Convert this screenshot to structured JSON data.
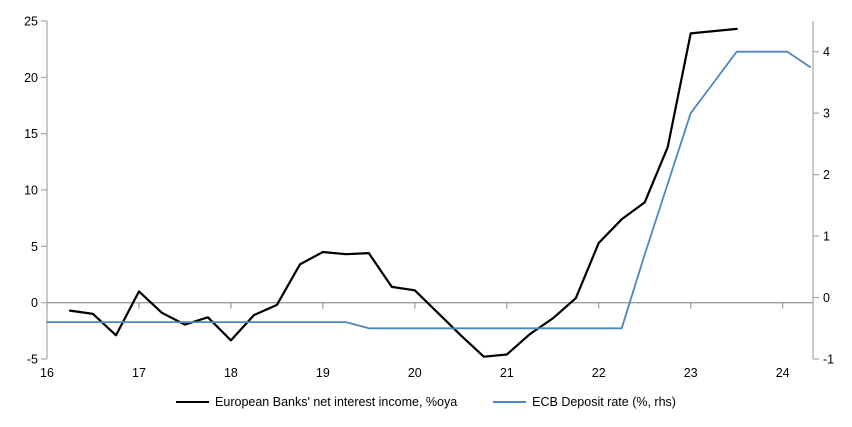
{
  "chart_data": {
    "type": "line",
    "title": "",
    "legend_position": "bottom",
    "grid": false,
    "x_axis": {
      "min": 16,
      "max": 24.33,
      "ticks": [
        16,
        17,
        18,
        19,
        20,
        21,
        22,
        23,
        24
      ],
      "tick_labels": [
        "16",
        "17",
        "18",
        "19",
        "20",
        "21",
        "22",
        "23",
        "24"
      ],
      "axis_at_value": 0
    },
    "left_axis": {
      "min": -5,
      "max": 25,
      "ticks": [
        25,
        20,
        15,
        10,
        5,
        0,
        -5
      ],
      "tick_labels": [
        "25",
        "20",
        "15",
        "10",
        "5",
        "0",
        "-5"
      ]
    },
    "right_axis": {
      "min": -1,
      "max": 4.5,
      "ticks": [
        4,
        3,
        2,
        1,
        0,
        -1
      ],
      "tick_labels": [
        "4",
        "3",
        "2",
        "1",
        "0",
        "-1"
      ]
    },
    "series": [
      {
        "name": "European Banks' net interest income, %oya",
        "axis": "left",
        "color": "#000000",
        "line_width": 2.2,
        "points": [
          [
            16.25,
            -0.7
          ],
          [
            16.5,
            -1.0
          ],
          [
            16.75,
            -2.9
          ],
          [
            17.0,
            1.0
          ],
          [
            17.25,
            -0.9
          ],
          [
            17.5,
            -1.95
          ],
          [
            17.75,
            -1.3
          ],
          [
            18.0,
            -3.35
          ],
          [
            18.25,
            -1.1
          ],
          [
            18.5,
            -0.2
          ],
          [
            18.75,
            3.4
          ],
          [
            19.0,
            4.5
          ],
          [
            19.25,
            4.3
          ],
          [
            19.5,
            4.4
          ],
          [
            19.75,
            1.4
          ],
          [
            20.0,
            1.1
          ],
          [
            20.25,
            -0.9
          ],
          [
            20.5,
            -2.9
          ],
          [
            20.75,
            -4.8
          ],
          [
            21.0,
            -4.6
          ],
          [
            21.25,
            -2.8
          ],
          [
            21.5,
            -1.4
          ],
          [
            21.75,
            0.4
          ],
          [
            22.0,
            5.3
          ],
          [
            22.25,
            7.4
          ],
          [
            22.5,
            8.9
          ],
          [
            22.75,
            13.8
          ],
          [
            23.0,
            23.9
          ],
          [
            23.25,
            24.1
          ],
          [
            23.5,
            24.3
          ]
        ]
      },
      {
        "name": "ECB Deposit rate (%, rhs)",
        "axis": "right",
        "color": "#4f86c0",
        "line_width": 1.8,
        "points": [
          [
            16.0,
            -0.4
          ],
          [
            19.25,
            -0.4
          ],
          [
            19.5,
            -0.5
          ],
          [
            22.25,
            -0.5
          ],
          [
            22.5,
            0.7
          ],
          [
            22.75,
            1.85
          ],
          [
            23.0,
            3.0
          ],
          [
            23.25,
            3.5
          ],
          [
            23.5,
            4.0
          ],
          [
            24.05,
            4.0
          ],
          [
            24.3,
            3.75
          ]
        ]
      }
    ]
  },
  "colors": {
    "background": "#ffffff",
    "axis_line": "#a6a6a6",
    "zero_line": "#9e9e9e",
    "text": "#000000"
  }
}
